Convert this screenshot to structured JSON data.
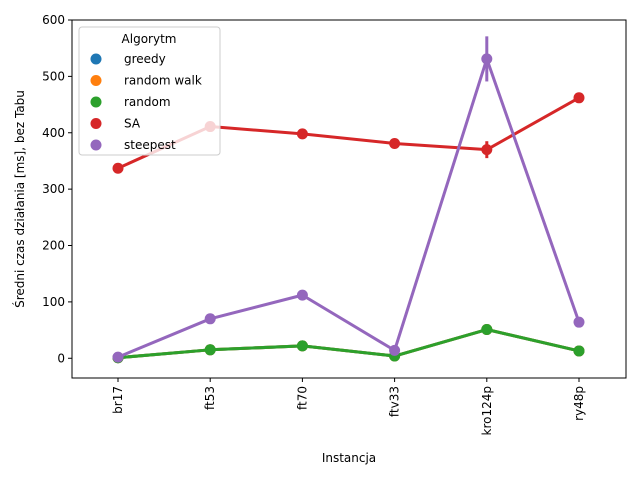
{
  "chart_data": {
    "type": "line",
    "xlabel": "Instancja",
    "ylabel": "Średni czas działania [ms], bez Tabu",
    "categories": [
      "br17",
      "ft53",
      "ft70",
      "ftv33",
      "kro124p",
      "ry48p"
    ],
    "ylim": [
      -35,
      600
    ],
    "yticks": [
      0,
      100,
      200,
      300,
      400,
      500,
      600
    ],
    "grid": false,
    "legend": {
      "title": "Algorytm",
      "placement": "top-left"
    },
    "series": [
      {
        "name": "greedy",
        "color": "#1f77b4",
        "values": [
          1,
          15,
          22,
          4,
          51,
          13
        ]
      },
      {
        "name": "random walk",
        "color": "#ff7f0e",
        "values": [
          1,
          15,
          22,
          4,
          51,
          13
        ]
      },
      {
        "name": "random",
        "color": "#2ca02c",
        "values": [
          1,
          15,
          22,
          4,
          51,
          13
        ],
        "err": [
          1,
          2,
          2,
          1,
          3,
          2
        ]
      },
      {
        "name": "SA",
        "color": "#d62728",
        "values": [
          337,
          411,
          398,
          381,
          370,
          462
        ],
        "err": [
          6,
          5,
          8,
          6,
          15,
          8
        ]
      },
      {
        "name": "steepest",
        "color": "#9467bd",
        "values": [
          2,
          70,
          112,
          14,
          531,
          64
        ],
        "err": [
          1,
          3,
          4,
          2,
          40,
          3
        ]
      }
    ]
  }
}
